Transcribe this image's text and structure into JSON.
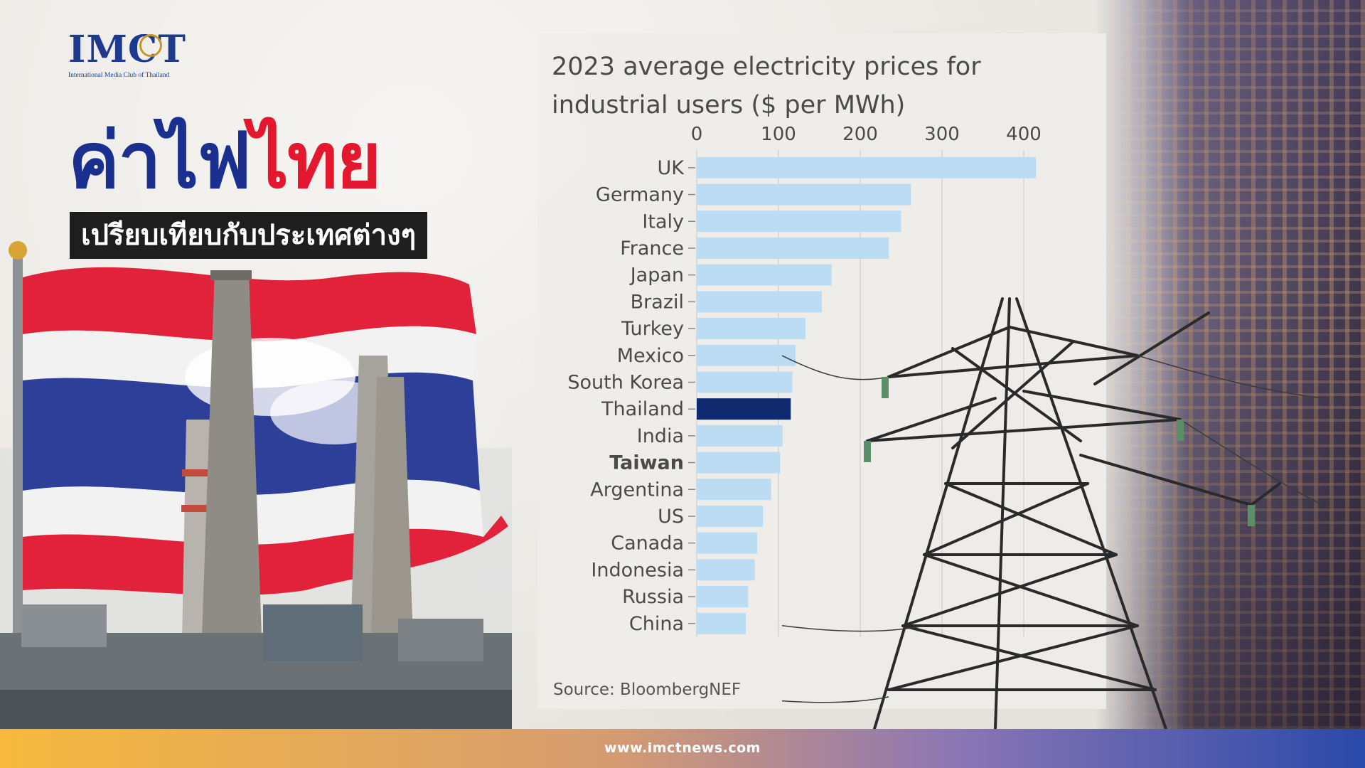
{
  "brand": {
    "logo_text": "IMCT",
    "logo_subtitle": "International Media Club of Thailand",
    "logo_color": "#1d3a8f"
  },
  "headline": {
    "part1": "ค่าไฟ",
    "part2": "ไทย",
    "part1_color": "#1b2f8f",
    "part2_color": "#e3182e"
  },
  "subheadline": "เปรียบเทียบกับประเทศต่างๆ",
  "footer": {
    "url": "www.imctnews.com"
  },
  "chart_data": {
    "type": "bar",
    "orientation": "horizontal",
    "title": "2023 average electricity prices for industrial users ($ per MWh)",
    "source": "Source: BloombergNEF",
    "xlim": [
      0,
      420
    ],
    "xticks": [
      0,
      100,
      200,
      300,
      400
    ],
    "grid": true,
    "categories": [
      "UK",
      "Germany",
      "Italy",
      "France",
      "Japan",
      "Brazil",
      "Turkey",
      "Mexico",
      "South Korea",
      "Thailand",
      "India",
      "Taiwan",
      "Argentina",
      "US",
      "Canada",
      "Indonesia",
      "Russia",
      "China"
    ],
    "values": [
      415,
      262,
      250,
      235,
      165,
      153,
      133,
      121,
      117,
      115,
      105,
      102,
      91,
      81,
      74,
      71,
      63,
      60
    ],
    "highlight": "Thailand",
    "bold_label": "Taiwan",
    "bar_color": "#bcdcf3",
    "highlight_color": "#0f2a6e"
  }
}
